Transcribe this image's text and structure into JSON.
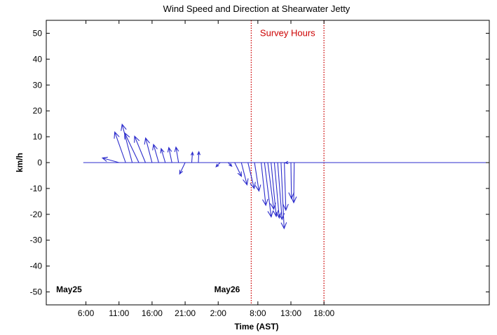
{
  "chart_data": {
    "type": "vector-stick",
    "title": "Wind Speed and Direction at Shearwater Jetty",
    "xlabel": "Time (AST)",
    "ylabel": "km/h",
    "x_unit": "hours from May25 00:00",
    "xlim": [
      0,
      67
    ],
    "ylim": [
      -55,
      55
    ],
    "grid": false,
    "x_ticks": [
      {
        "x": 6,
        "label": "6:00"
      },
      {
        "x": 11,
        "label": "11:00"
      },
      {
        "x": 16,
        "label": "16:00"
      },
      {
        "x": 21,
        "label": "21:00"
      },
      {
        "x": 26,
        "label": "2:00"
      },
      {
        "x": 32,
        "label": "8:00"
      },
      {
        "x": 37,
        "label": "13:00"
      },
      {
        "x": 42,
        "label": "18:00"
      }
    ],
    "y_ticks": [
      50,
      40,
      30,
      20,
      10,
      0,
      -10,
      -20,
      -30,
      -40,
      -50
    ],
    "day_labels": [
      {
        "x": 1.5,
        "y": -49,
        "label": "May25"
      },
      {
        "x": 25.4,
        "y": -49,
        "label": "May26"
      }
    ],
    "baseline": {
      "x_start": 5.6,
      "x_end": 67,
      "y": 0
    },
    "survey_hours": {
      "label": "Survey Hours",
      "x_start": 31,
      "x_end": 42,
      "label_x": 36.5,
      "label_y": 50
    },
    "vector_color": "#2d2dcc",
    "marker_color": "#cc0000",
    "vectors": [
      {
        "x": 11,
        "u": -6.4,
        "v": 1.8
      },
      {
        "x": 12,
        "u": -4.2,
        "v": 11.8
      },
      {
        "x": 13,
        "u": -3.9,
        "v": 14.8
      },
      {
        "x": 14,
        "u": -5.5,
        "v": 11.5
      },
      {
        "x": 15,
        "u": -4.2,
        "v": 10.2
      },
      {
        "x": 16,
        "u": -2.5,
        "v": 9.5
      },
      {
        "x": 17,
        "u": -2.0,
        "v": 7.0
      },
      {
        "x": 18,
        "u": -1.6,
        "v": 5.4
      },
      {
        "x": 19,
        "u": -1.2,
        "v": 5.8
      },
      {
        "x": 20,
        "u": -1.0,
        "v": 6.0
      },
      {
        "x": 21,
        "u": -2.1,
        "v": -4.4
      },
      {
        "x": 22,
        "u": 0.3,
        "v": 4.0
      },
      {
        "x": 23,
        "u": 0.2,
        "v": 4.2
      },
      {
        "x": 26.3,
        "u": -1.6,
        "v": -1.6
      },
      {
        "x": 27.5,
        "u": 1.4,
        "v": -1.4
      },
      {
        "x": 28.5,
        "u": 2.6,
        "v": -5.3
      },
      {
        "x": 29.5,
        "u": 2.2,
        "v": -8.6
      },
      {
        "x": 30.5,
        "u": 2.4,
        "v": -10.0
      },
      {
        "x": 31.5,
        "u": 1.7,
        "v": -11.0
      },
      {
        "x": 32.5,
        "u": 1.8,
        "v": -16.5
      },
      {
        "x": 33,
        "u": 2.6,
        "v": -21.0
      },
      {
        "x": 33.5,
        "u": 2.3,
        "v": -18.0
      },
      {
        "x": 34,
        "u": 2.0,
        "v": -20.8
      },
      {
        "x": 34.5,
        "u": 1.9,
        "v": -21.4
      },
      {
        "x": 35,
        "u": 1.7,
        "v": -22.0
      },
      {
        "x": 35.5,
        "u": 1.2,
        "v": -25.5
      },
      {
        "x": 36,
        "u": 0.6,
        "v": -18.4
      },
      {
        "x": 36.5,
        "u": -0.9,
        "v": -0.1
      },
      {
        "x": 37,
        "u": 0.2,
        "v": -13.9
      },
      {
        "x": 37.5,
        "u": -0.2,
        "v": -15.5
      }
    ]
  }
}
